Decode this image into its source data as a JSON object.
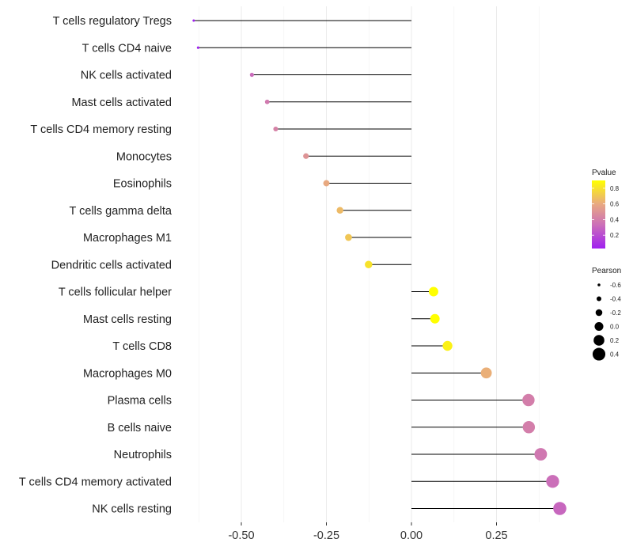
{
  "chart_data": {
    "type": "lollipop",
    "categories": [
      "T cells regulatory  Tregs",
      "T cells CD4 naive",
      "NK cells activated",
      "Mast cells activated",
      "T cells CD4 memory resting",
      "Monocytes",
      "Eosinophils",
      "T cells gamma delta",
      "Macrophages M1",
      "Dendritic cells activated",
      "T cells follicular helper",
      "Mast cells resting",
      "T cells CD8",
      "Macrophages M0",
      "Plasma cells",
      "B cells naive",
      "Neutrophils",
      "T cells CD4 memory activated",
      "NK cells resting"
    ],
    "pearson": [
      -0.64,
      -0.627,
      -0.469,
      -0.424,
      -0.399,
      -0.31,
      -0.25,
      -0.21,
      -0.185,
      -0.126,
      0.065,
      0.069,
      0.106,
      0.22,
      0.344,
      0.345,
      0.38,
      0.415,
      0.436
    ],
    "pvalue": [
      0.03,
      0.04,
      0.32,
      0.38,
      0.42,
      0.5,
      0.6,
      0.66,
      0.7,
      0.8,
      0.9,
      0.9,
      0.85,
      0.62,
      0.4,
      0.4,
      0.37,
      0.33,
      0.3
    ],
    "xlim": [
      -0.64,
      0.45
    ],
    "x_ticks": [
      -0.5,
      -0.25,
      0.0,
      0.25
    ],
    "x_tick_labels": [
      "-0.50",
      "-0.25",
      "0.00",
      "0.25"
    ],
    "legend_color": {
      "title": "Pvalue",
      "ticks": [
        0.2,
        0.4,
        0.6,
        0.8
      ],
      "tick_labels": [
        "0.2",
        "0.4",
        "0.6",
        "0.8"
      ],
      "range": [
        0.03,
        0.9
      ]
    },
    "legend_size": {
      "title": "Pearson",
      "values": [
        -0.6,
        -0.4,
        -0.2,
        0.0,
        0.2,
        0.4
      ],
      "labels": [
        "-0.6",
        "-0.4",
        "-0.2",
        "0.0",
        "0.2",
        "0.4"
      ]
    },
    "colors": {
      "low": "#a020f0",
      "mid": "#e8a882",
      "high": "#ffff00",
      "stem": "#000000",
      "grid": "#ebebeb"
    }
  }
}
